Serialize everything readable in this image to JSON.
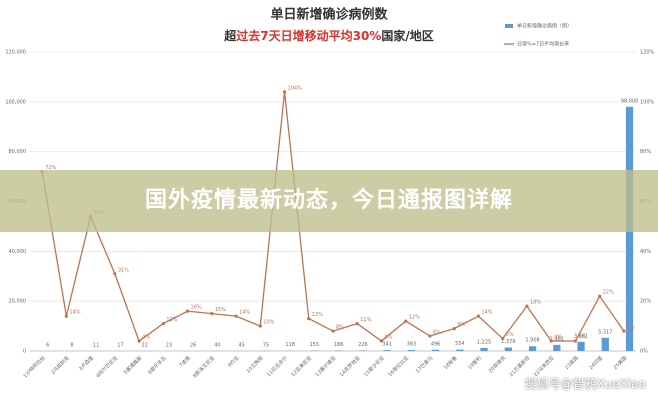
{
  "chart_data": {
    "type": "bar-line",
    "title": "单日新增确诊病例数",
    "subtitle": [
      "超",
      "过去7天日增移动平均30%",
      "国家/地区"
    ],
    "banner": "国外疫情最新动态，今日通报图详解",
    "watermark": "搜狐号@智鸦XueXiao",
    "categories": [
      "1沙特阿拉伯",
      "2乌兹别克",
      "3卢森堡",
      "4阿尔巴尼亚",
      "5塞浦路斯",
      "6摩尔多瓦",
      "7波黑",
      "8斯洛文尼亚",
      "9约旦",
      "10立陶宛",
      "11厄瓜多尔",
      "12亚美尼亚",
      "13塞尔维亚",
      "14克罗地亚",
      "15爱沙尼亚",
      "16哥伦比亚",
      "17巴拿马",
      "18秘鲁",
      "19智利",
      "20菲律宾",
      "21巴基斯坦",
      "22马来西亚",
      "23泰国",
      "24印度",
      "25美国"
    ],
    "series": [
      {
        "name": "单日新增确诊病例（例）",
        "color": "#5b9bd5",
        "type": "bar",
        "values": [
          6,
          8,
          11,
          17,
          22,
          23,
          26,
          40,
          45,
          75,
          118,
          155,
          186,
          226,
          341,
          383,
          496,
          554,
          1225,
          1379,
          1908,
          2461,
          3681,
          5317,
          98000
        ],
        "value_labels": [
          "6",
          "8",
          "11",
          "17",
          "22",
          "23",
          "26",
          "40",
          "45",
          "75",
          "118",
          "155",
          "186",
          "226",
          "341",
          "383",
          "496",
          "554",
          "1,225",
          "1,379",
          "1,908",
          "2,461",
          "3,681",
          "5,317",
          "98,000"
        ]
      },
      {
        "name": "日增%=7日平均增长率",
        "color": "#c0714f",
        "type": "line",
        "axis": "y2",
        "values": [
          72,
          14,
          54,
          31,
          4,
          11,
          16,
          15,
          14,
          10,
          104,
          13,
          8,
          11,
          4,
          12,
          6,
          9,
          14,
          5,
          18,
          4,
          4,
          22,
          8
        ],
        "value_labels": [
          "72%",
          "14%",
          "54%",
          "31%",
          "4%",
          "11%",
          "16%",
          "15%",
          "14%",
          "10%",
          "104%",
          "13%",
          "8%",
          "11%",
          "4%",
          "12%",
          "6%",
          "9%",
          "14%",
          "5%",
          "18%",
          "4%",
          "4%",
          "22%",
          "8%"
        ]
      }
    ],
    "ylim": [
      0,
      120000
    ],
    "yticks": [
      0,
      {
        "value": 20000,
        "label": "20,000"
      },
      {
        "value": 40000,
        "label": "40,000"
      },
      {
        "value": 60000,
        "label": "60,000"
      },
      {
        "value": 80000,
        "label": "80,000"
      },
      {
        "value": 100000,
        "label": "100,000"
      },
      {
        "value": 120000,
        "label": "120,000"
      }
    ],
    "y2lim": [
      0,
      120
    ],
    "y2ticks": [
      {
        "value": 0,
        "label": "0%"
      },
      {
        "value": 20,
        "label": "20%"
      },
      {
        "value": 40,
        "label": "40%"
      },
      {
        "value": 60,
        "label": "60%"
      },
      {
        "value": 80,
        "label": "80%"
      },
      {
        "value": 100,
        "label": "100%"
      },
      {
        "value": 120,
        "label": "120%"
      }
    ],
    "grid": true,
    "legend": "top-right"
  }
}
